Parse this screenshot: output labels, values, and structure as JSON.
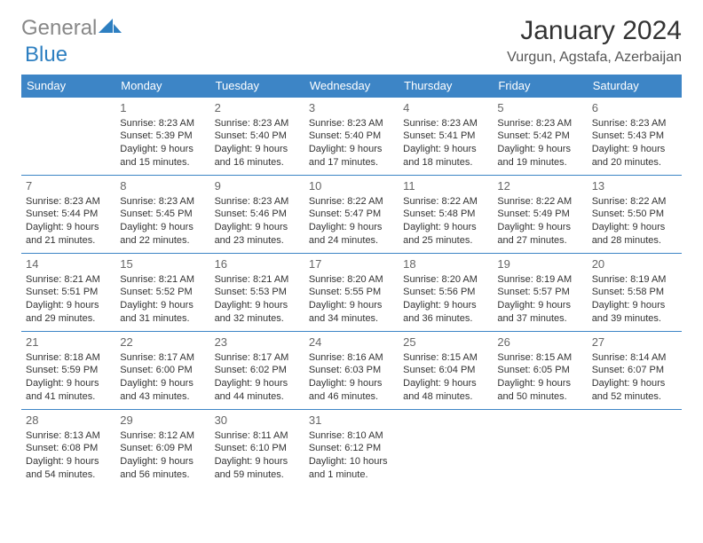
{
  "logo": {
    "general": "General",
    "blue": "Blue"
  },
  "title": "January 2024",
  "location": "Vurgun, Agstafa, Azerbaijan",
  "weekdays": [
    "Sunday",
    "Monday",
    "Tuesday",
    "Wednesday",
    "Thursday",
    "Friday",
    "Saturday"
  ],
  "header_bg": "#3d85c6",
  "header_fg": "#ffffff",
  "border_color": "#3d85c6",
  "text_color": "#333333",
  "weeks": [
    [
      null,
      {
        "n": "1",
        "sr": "Sunrise: 8:23 AM",
        "ss": "Sunset: 5:39 PM",
        "d1": "Daylight: 9 hours",
        "d2": "and 15 minutes."
      },
      {
        "n": "2",
        "sr": "Sunrise: 8:23 AM",
        "ss": "Sunset: 5:40 PM",
        "d1": "Daylight: 9 hours",
        "d2": "and 16 minutes."
      },
      {
        "n": "3",
        "sr": "Sunrise: 8:23 AM",
        "ss": "Sunset: 5:40 PM",
        "d1": "Daylight: 9 hours",
        "d2": "and 17 minutes."
      },
      {
        "n": "4",
        "sr": "Sunrise: 8:23 AM",
        "ss": "Sunset: 5:41 PM",
        "d1": "Daylight: 9 hours",
        "d2": "and 18 minutes."
      },
      {
        "n": "5",
        "sr": "Sunrise: 8:23 AM",
        "ss": "Sunset: 5:42 PM",
        "d1": "Daylight: 9 hours",
        "d2": "and 19 minutes."
      },
      {
        "n": "6",
        "sr": "Sunrise: 8:23 AM",
        "ss": "Sunset: 5:43 PM",
        "d1": "Daylight: 9 hours",
        "d2": "and 20 minutes."
      }
    ],
    [
      {
        "n": "7",
        "sr": "Sunrise: 8:23 AM",
        "ss": "Sunset: 5:44 PM",
        "d1": "Daylight: 9 hours",
        "d2": "and 21 minutes."
      },
      {
        "n": "8",
        "sr": "Sunrise: 8:23 AM",
        "ss": "Sunset: 5:45 PM",
        "d1": "Daylight: 9 hours",
        "d2": "and 22 minutes."
      },
      {
        "n": "9",
        "sr": "Sunrise: 8:23 AM",
        "ss": "Sunset: 5:46 PM",
        "d1": "Daylight: 9 hours",
        "d2": "and 23 minutes."
      },
      {
        "n": "10",
        "sr": "Sunrise: 8:22 AM",
        "ss": "Sunset: 5:47 PM",
        "d1": "Daylight: 9 hours",
        "d2": "and 24 minutes."
      },
      {
        "n": "11",
        "sr": "Sunrise: 8:22 AM",
        "ss": "Sunset: 5:48 PM",
        "d1": "Daylight: 9 hours",
        "d2": "and 25 minutes."
      },
      {
        "n": "12",
        "sr": "Sunrise: 8:22 AM",
        "ss": "Sunset: 5:49 PM",
        "d1": "Daylight: 9 hours",
        "d2": "and 27 minutes."
      },
      {
        "n": "13",
        "sr": "Sunrise: 8:22 AM",
        "ss": "Sunset: 5:50 PM",
        "d1": "Daylight: 9 hours",
        "d2": "and 28 minutes."
      }
    ],
    [
      {
        "n": "14",
        "sr": "Sunrise: 8:21 AM",
        "ss": "Sunset: 5:51 PM",
        "d1": "Daylight: 9 hours",
        "d2": "and 29 minutes."
      },
      {
        "n": "15",
        "sr": "Sunrise: 8:21 AM",
        "ss": "Sunset: 5:52 PM",
        "d1": "Daylight: 9 hours",
        "d2": "and 31 minutes."
      },
      {
        "n": "16",
        "sr": "Sunrise: 8:21 AM",
        "ss": "Sunset: 5:53 PM",
        "d1": "Daylight: 9 hours",
        "d2": "and 32 minutes."
      },
      {
        "n": "17",
        "sr": "Sunrise: 8:20 AM",
        "ss": "Sunset: 5:55 PM",
        "d1": "Daylight: 9 hours",
        "d2": "and 34 minutes."
      },
      {
        "n": "18",
        "sr": "Sunrise: 8:20 AM",
        "ss": "Sunset: 5:56 PM",
        "d1": "Daylight: 9 hours",
        "d2": "and 36 minutes."
      },
      {
        "n": "19",
        "sr": "Sunrise: 8:19 AM",
        "ss": "Sunset: 5:57 PM",
        "d1": "Daylight: 9 hours",
        "d2": "and 37 minutes."
      },
      {
        "n": "20",
        "sr": "Sunrise: 8:19 AM",
        "ss": "Sunset: 5:58 PM",
        "d1": "Daylight: 9 hours",
        "d2": "and 39 minutes."
      }
    ],
    [
      {
        "n": "21",
        "sr": "Sunrise: 8:18 AM",
        "ss": "Sunset: 5:59 PM",
        "d1": "Daylight: 9 hours",
        "d2": "and 41 minutes."
      },
      {
        "n": "22",
        "sr": "Sunrise: 8:17 AM",
        "ss": "Sunset: 6:00 PM",
        "d1": "Daylight: 9 hours",
        "d2": "and 43 minutes."
      },
      {
        "n": "23",
        "sr": "Sunrise: 8:17 AM",
        "ss": "Sunset: 6:02 PM",
        "d1": "Daylight: 9 hours",
        "d2": "and 44 minutes."
      },
      {
        "n": "24",
        "sr": "Sunrise: 8:16 AM",
        "ss": "Sunset: 6:03 PM",
        "d1": "Daylight: 9 hours",
        "d2": "and 46 minutes."
      },
      {
        "n": "25",
        "sr": "Sunrise: 8:15 AM",
        "ss": "Sunset: 6:04 PM",
        "d1": "Daylight: 9 hours",
        "d2": "and 48 minutes."
      },
      {
        "n": "26",
        "sr": "Sunrise: 8:15 AM",
        "ss": "Sunset: 6:05 PM",
        "d1": "Daylight: 9 hours",
        "d2": "and 50 minutes."
      },
      {
        "n": "27",
        "sr": "Sunrise: 8:14 AM",
        "ss": "Sunset: 6:07 PM",
        "d1": "Daylight: 9 hours",
        "d2": "and 52 minutes."
      }
    ],
    [
      {
        "n": "28",
        "sr": "Sunrise: 8:13 AM",
        "ss": "Sunset: 6:08 PM",
        "d1": "Daylight: 9 hours",
        "d2": "and 54 minutes."
      },
      {
        "n": "29",
        "sr": "Sunrise: 8:12 AM",
        "ss": "Sunset: 6:09 PM",
        "d1": "Daylight: 9 hours",
        "d2": "and 56 minutes."
      },
      {
        "n": "30",
        "sr": "Sunrise: 8:11 AM",
        "ss": "Sunset: 6:10 PM",
        "d1": "Daylight: 9 hours",
        "d2": "and 59 minutes."
      },
      {
        "n": "31",
        "sr": "Sunrise: 8:10 AM",
        "ss": "Sunset: 6:12 PM",
        "d1": "Daylight: 10 hours",
        "d2": "and 1 minute."
      },
      null,
      null,
      null
    ]
  ]
}
